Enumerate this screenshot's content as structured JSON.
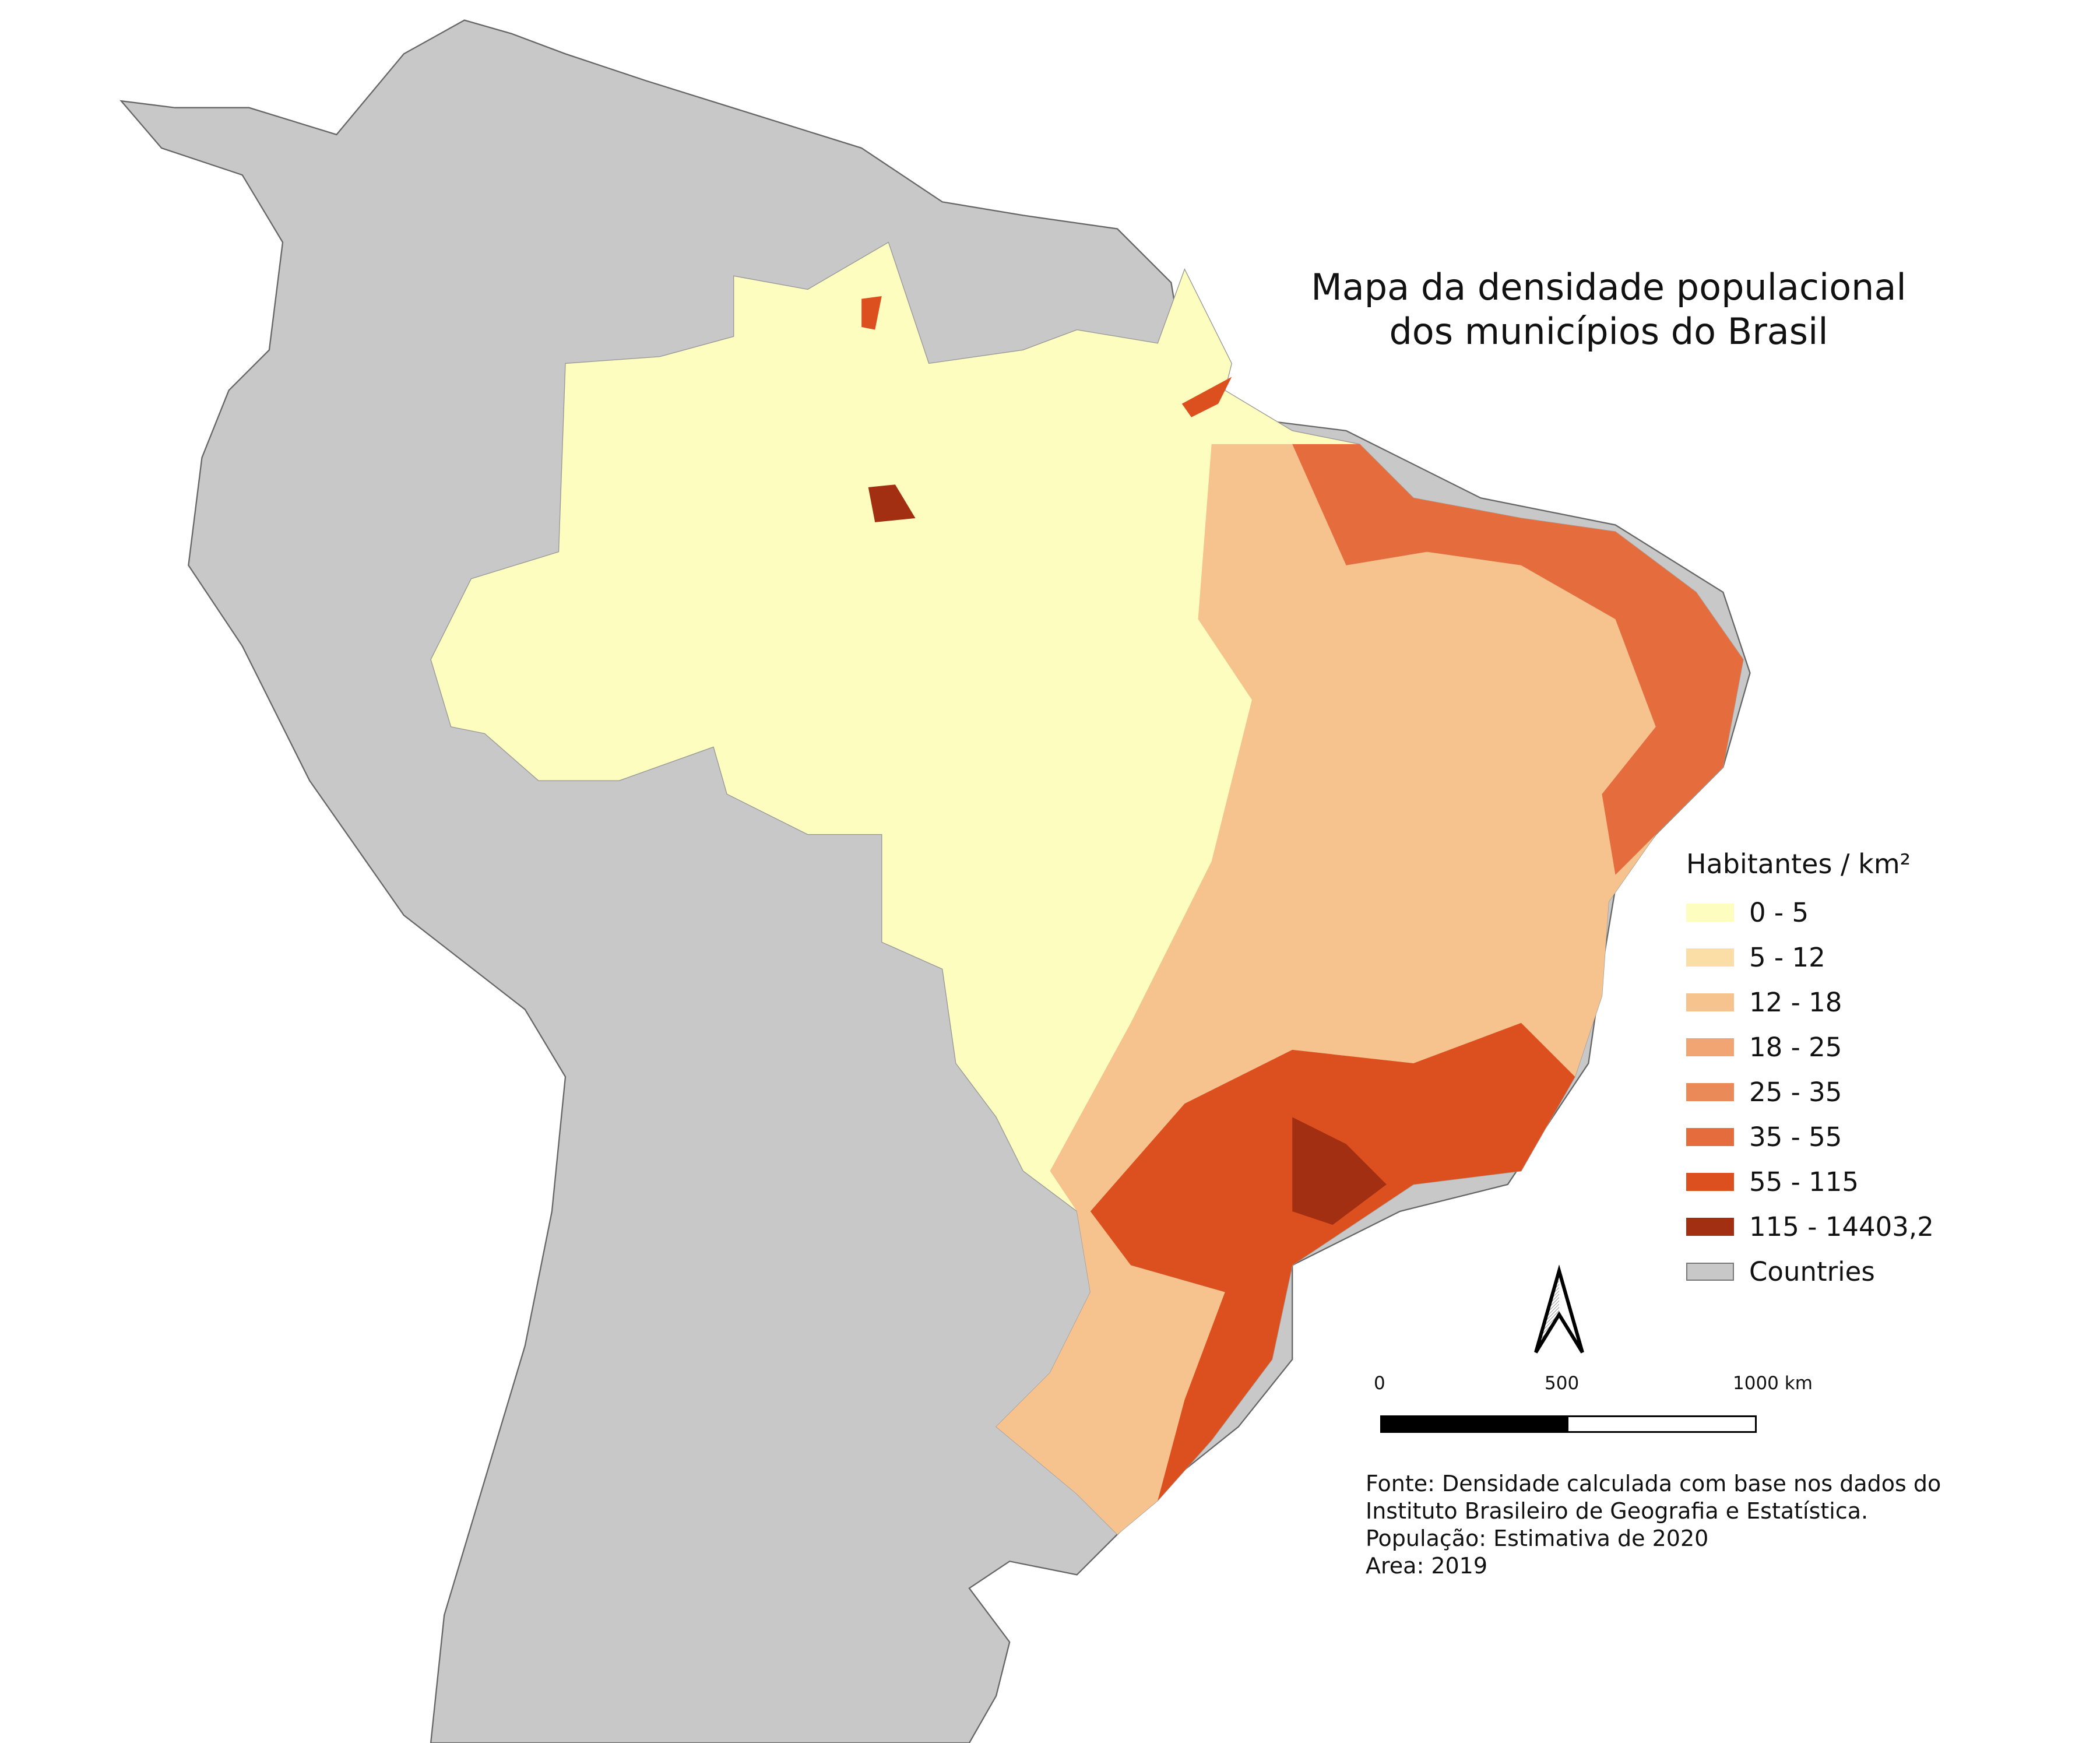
{
  "title": {
    "line1": "Mapa da densidade populacional",
    "line2": "dos municípios do Brasil"
  },
  "legend": {
    "title": "Habitantes / km²",
    "items": [
      {
        "label": "0 - 5",
        "color": "#fefdc0"
      },
      {
        "label": "5 - 12",
        "color": "#fbdea6"
      },
      {
        "label": "12 - 18",
        "color": "#f6c28d"
      },
      {
        "label": "18 - 25",
        "color": "#f0a572"
      },
      {
        "label": "25 - 35",
        "color": "#ea8a58"
      },
      {
        "label": "35 - 55",
        "color": "#e46c3d"
      },
      {
        "label": "55 - 115",
        "color": "#dc4f1f"
      },
      {
        "label": "115 - 14403,2",
        "color": "#a22f12"
      },
      {
        "label": "Countries",
        "color": "#c8c8c8"
      }
    ]
  },
  "scale_bar": {
    "labels": [
      "0",
      "500",
      "1000 km"
    ]
  },
  "north_arrow": {
    "icon": "north-arrow-icon"
  },
  "source": {
    "lines": [
      "Fonte: Densidade calculada com base nos dados do",
      "Instituto Brasileiro de Geografia e Estatística.",
      "População: Estimativa de 2020",
      "Area: 2019"
    ]
  }
}
